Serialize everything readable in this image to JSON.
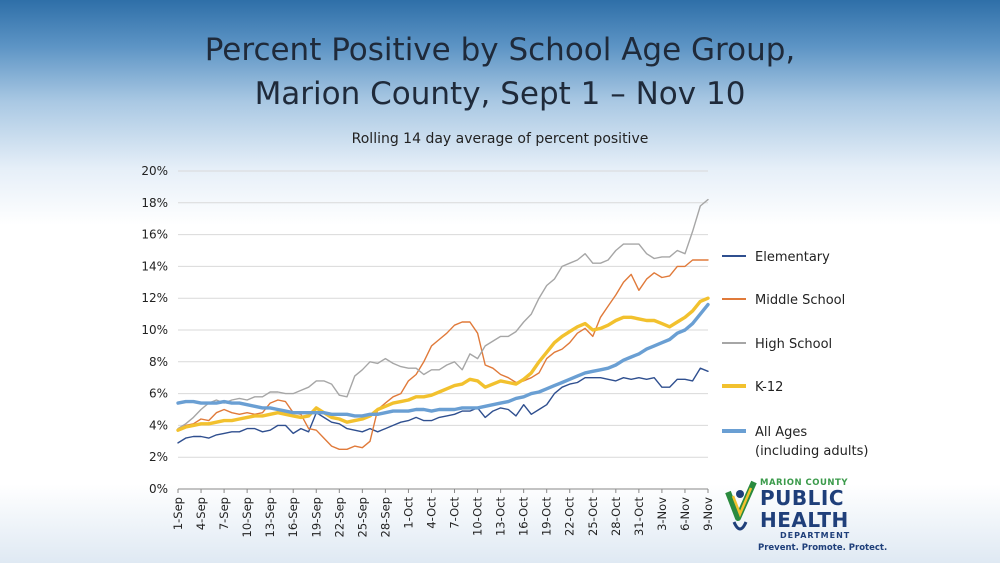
{
  "slide": {
    "title_line1": "Percent Positive by School Age Group,",
    "title_line2": "Marion County, Sept 1 – Nov 10",
    "subtitle": "Rolling 14 day average of percent positive"
  },
  "logo": {
    "line1": "MARION COUNTY",
    "line2": "PUBLIC",
    "line3": "HEALTH",
    "line4": "DEPARTMENT",
    "tagline": "Prevent. Promote. Protect."
  },
  "chart_data": {
    "type": "line",
    "title": "Rolling 14 day average of percent positive",
    "ylim": [
      0,
      20
    ],
    "y_ticks": [
      0,
      2,
      4,
      6,
      8,
      10,
      12,
      14,
      16,
      18,
      20
    ],
    "y_tick_format": "%",
    "grid": true,
    "legend_position": "right",
    "x_tick_labels": [
      "1-Sep",
      "4-Sep",
      "7-Sep",
      "10-Sep",
      "13-Sep",
      "16-Sep",
      "19-Sep",
      "22-Sep",
      "25-Sep",
      "28-Sep",
      "1-Oct",
      "4-Oct",
      "7-Oct",
      "10-Oct",
      "13-Oct",
      "16-Oct",
      "19-Oct",
      "22-Oct",
      "25-Oct",
      "28-Oct",
      "31-Oct",
      "3-Nov",
      "6-Nov",
      "9-Nov"
    ],
    "series": [
      {
        "name": "Elementary",
        "color": "#2f4f8f",
        "width": 1.4,
        "values": [
          2.9,
          3.2,
          3.3,
          3.3,
          3.2,
          3.4,
          3.5,
          3.6,
          3.6,
          3.8,
          3.8,
          3.6,
          3.7,
          4.0,
          4.0,
          3.5,
          3.8,
          3.6,
          4.8,
          4.5,
          4.2,
          4.1,
          3.8,
          3.7,
          3.6,
          3.8,
          3.6,
          3.8,
          4.0,
          4.2,
          4.3,
          4.5,
          4.3,
          4.3,
          4.5,
          4.6,
          4.7,
          4.9,
          4.9,
          5.1,
          4.5,
          4.9,
          5.1,
          5.0,
          4.6,
          5.3,
          4.7,
          5.0,
          5.3,
          6.0,
          6.4,
          6.6,
          6.7,
          7.0,
          7.0,
          7.0,
          6.9,
          6.8,
          7.0,
          6.9,
          7.0,
          6.9,
          7.0,
          6.4,
          6.4,
          6.9,
          6.9,
          6.8,
          7.6,
          7.4
        ]
      },
      {
        "name": "Middle School",
        "color": "#e07a3a",
        "width": 1.4,
        "values": [
          3.7,
          4.0,
          4.1,
          4.4,
          4.3,
          4.8,
          5.0,
          4.8,
          4.7,
          4.8,
          4.7,
          4.8,
          5.4,
          5.6,
          5.5,
          4.8,
          4.7,
          3.8,
          3.7,
          3.2,
          2.7,
          2.5,
          2.5,
          2.7,
          2.6,
          3.0,
          5.0,
          5.4,
          5.8,
          6.0,
          6.8,
          7.2,
          8.0,
          9.0,
          9.4,
          9.8,
          10.3,
          10.5,
          10.5,
          9.8,
          7.8,
          7.6,
          7.2,
          7.0,
          6.7,
          6.8,
          7.0,
          7.3,
          8.2,
          8.6,
          8.8,
          9.2,
          9.8,
          10.1,
          9.6,
          10.8,
          11.5,
          12.2,
          13.0,
          13.5,
          12.5,
          13.2,
          13.6,
          13.3,
          13.4,
          14.0,
          14.0,
          14.4,
          14.4,
          14.4
        ]
      },
      {
        "name": "High School",
        "color": "#a6a6a6",
        "width": 1.4,
        "values": [
          3.8,
          4.1,
          4.5,
          5.0,
          5.4,
          5.6,
          5.4,
          5.6,
          5.7,
          5.6,
          5.8,
          5.8,
          6.1,
          6.1,
          6.0,
          6.0,
          6.2,
          6.4,
          6.8,
          6.8,
          6.6,
          5.9,
          5.8,
          7.1,
          7.5,
          8.0,
          7.9,
          8.2,
          7.9,
          7.7,
          7.6,
          7.6,
          7.2,
          7.5,
          7.5,
          7.8,
          8.0,
          7.5,
          8.5,
          8.2,
          9.0,
          9.3,
          9.6,
          9.6,
          9.9,
          10.5,
          11.0,
          12.0,
          12.8,
          13.2,
          14.0,
          14.2,
          14.4,
          14.8,
          14.2,
          14.2,
          14.4,
          15.0,
          15.4,
          15.4,
          15.4,
          14.8,
          14.5,
          14.6,
          14.6,
          15.0,
          14.8,
          16.2,
          17.8,
          18.2
        ]
      },
      {
        "name": "K-12",
        "color": "#f2c12e",
        "width": 3.4,
        "values": [
          3.7,
          3.9,
          4.0,
          4.1,
          4.1,
          4.2,
          4.3,
          4.3,
          4.4,
          4.5,
          4.6,
          4.6,
          4.7,
          4.8,
          4.7,
          4.6,
          4.5,
          4.6,
          5.1,
          4.8,
          4.5,
          4.4,
          4.2,
          4.3,
          4.4,
          4.6,
          5.0,
          5.2,
          5.4,
          5.5,
          5.6,
          5.8,
          5.8,
          5.9,
          6.1,
          6.3,
          6.5,
          6.6,
          6.9,
          6.8,
          6.4,
          6.6,
          6.8,
          6.7,
          6.6,
          6.9,
          7.3,
          8.0,
          8.6,
          9.2,
          9.6,
          9.9,
          10.2,
          10.4,
          10.0,
          10.1,
          10.3,
          10.6,
          10.8,
          10.8,
          10.7,
          10.6,
          10.6,
          10.4,
          10.2,
          10.5,
          10.8,
          11.2,
          11.8,
          12.0
        ]
      },
      {
        "name": "All Ages\n(including adults)",
        "color": "#6a9fd3",
        "width": 3.4,
        "values": [
          5.4,
          5.5,
          5.5,
          5.4,
          5.4,
          5.4,
          5.5,
          5.4,
          5.4,
          5.3,
          5.2,
          5.1,
          5.1,
          5.0,
          4.9,
          4.8,
          4.8,
          4.8,
          4.8,
          4.8,
          4.7,
          4.7,
          4.7,
          4.6,
          4.6,
          4.7,
          4.7,
          4.8,
          4.9,
          4.9,
          4.9,
          5.0,
          5.0,
          4.9,
          5.0,
          5.0,
          5.0,
          5.1,
          5.1,
          5.1,
          5.2,
          5.3,
          5.4,
          5.5,
          5.7,
          5.8,
          6.0,
          6.1,
          6.3,
          6.5,
          6.7,
          6.9,
          7.1,
          7.3,
          7.4,
          7.5,
          7.6,
          7.8,
          8.1,
          8.3,
          8.5,
          8.8,
          9.0,
          9.2,
          9.4,
          9.8,
          10.0,
          10.4,
          11.0,
          11.6
        ]
      }
    ]
  }
}
